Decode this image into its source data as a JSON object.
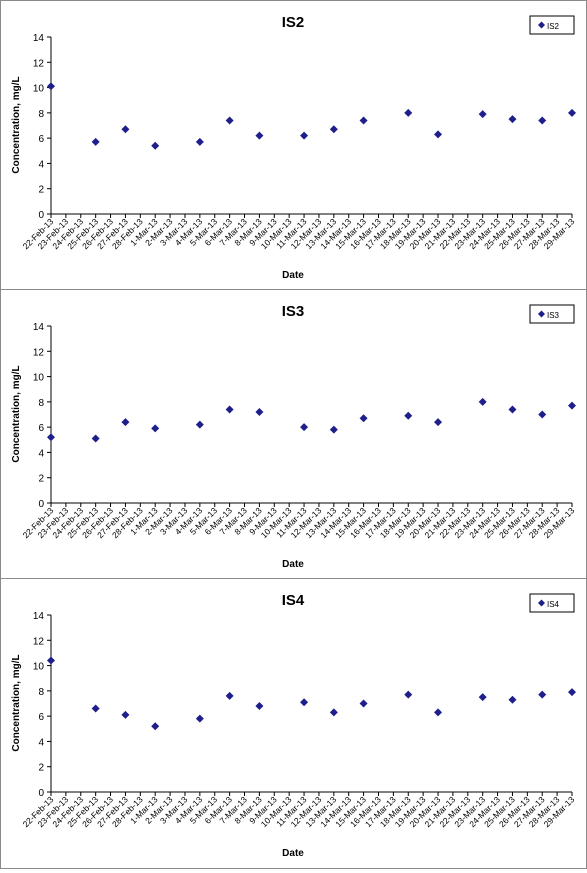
{
  "charts": [
    {
      "title": "IS2",
      "xlabel": "Date",
      "ylabel": "Concentration, mg/L",
      "legend": "IS2",
      "points": [
        {
          "date": "22-Feb-13",
          "value": 10.1
        },
        {
          "date": "25-Feb-13",
          "value": 5.7
        },
        {
          "date": "27-Feb-13",
          "value": 6.7
        },
        {
          "date": "1-Mar-13",
          "value": 5.4
        },
        {
          "date": "4-Mar-13",
          "value": 5.7
        },
        {
          "date": "6-Mar-13",
          "value": 7.4
        },
        {
          "date": "8-Mar-13",
          "value": 6.2
        },
        {
          "date": "11-Mar-13",
          "value": 6.2
        },
        {
          "date": "13-Mar-13",
          "value": 6.7
        },
        {
          "date": "15-Mar-13",
          "value": 7.4
        },
        {
          "date": "18-Mar-13",
          "value": 8.0
        },
        {
          "date": "20-Mar-13",
          "value": 6.3
        },
        {
          "date": "23-Mar-13",
          "value": 7.9
        },
        {
          "date": "25-Mar-13",
          "value": 7.5
        },
        {
          "date": "27-Mar-13",
          "value": 7.4
        },
        {
          "date": "29-Mar-13",
          "value": 8.0
        }
      ]
    },
    {
      "title": "IS3",
      "xlabel": "Date",
      "ylabel": "Concentration, mg/L",
      "legend": "IS3",
      "points": [
        {
          "date": "22-Feb-13",
          "value": 5.2
        },
        {
          "date": "25-Feb-13",
          "value": 5.1
        },
        {
          "date": "27-Feb-13",
          "value": 6.4
        },
        {
          "date": "1-Mar-13",
          "value": 5.9
        },
        {
          "date": "4-Mar-13",
          "value": 6.2
        },
        {
          "date": "6-Mar-13",
          "value": 7.4
        },
        {
          "date": "8-Mar-13",
          "value": 7.2
        },
        {
          "date": "11-Mar-13",
          "value": 6.0
        },
        {
          "date": "13-Mar-13",
          "value": 5.8
        },
        {
          "date": "15-Mar-13",
          "value": 6.7
        },
        {
          "date": "18-Mar-13",
          "value": 6.9
        },
        {
          "date": "20-Mar-13",
          "value": 6.4
        },
        {
          "date": "23-Mar-13",
          "value": 8.0
        },
        {
          "date": "25-Mar-13",
          "value": 7.4
        },
        {
          "date": "27-Mar-13",
          "value": 7.0
        },
        {
          "date": "29-Mar-13",
          "value": 7.7
        }
      ]
    },
    {
      "title": "IS4",
      "xlabel": "Date",
      "ylabel": "Concentration, mg/L",
      "legend": "IS4",
      "points": [
        {
          "date": "22-Feb-13",
          "value": 10.4
        },
        {
          "date": "25-Feb-13",
          "value": 6.6
        },
        {
          "date": "27-Feb-13",
          "value": 6.1
        },
        {
          "date": "1-Mar-13",
          "value": 5.2
        },
        {
          "date": "4-Mar-13",
          "value": 5.8
        },
        {
          "date": "6-Mar-13",
          "value": 7.6
        },
        {
          "date": "8-Mar-13",
          "value": 6.8
        },
        {
          "date": "11-Mar-13",
          "value": 7.1
        },
        {
          "date": "13-Mar-13",
          "value": 6.3
        },
        {
          "date": "15-Mar-13",
          "value": 7.0
        },
        {
          "date": "18-Mar-13",
          "value": 7.7
        },
        {
          "date": "20-Mar-13",
          "value": 6.3
        },
        {
          "date": "23-Mar-13",
          "value": 7.5
        },
        {
          "date": "25-Mar-13",
          "value": 7.3
        },
        {
          "date": "27-Mar-13",
          "value": 7.7
        },
        {
          "date": "29-Mar-13",
          "value": 7.9
        }
      ]
    }
  ],
  "x_tick_labels": [
    "22-Feb-13",
    "23-Feb-13",
    "24-Feb-13",
    "25-Feb-13",
    "26-Feb-13",
    "27-Feb-13",
    "28-Feb-13",
    "1-Mar-13",
    "2-Mar-13",
    "3-Mar-13",
    "4-Mar-13",
    "5-Mar-13",
    "6-Mar-13",
    "7-Mar-13",
    "8-Mar-13",
    "9-Mar-13",
    "10-Mar-13",
    "11-Mar-13",
    "12-Mar-13",
    "13-Mar-13",
    "14-Mar-13",
    "15-Mar-13",
    "16-Mar-13",
    "17-Mar-13",
    "18-Mar-13",
    "19-Mar-13",
    "20-Mar-13",
    "21-Mar-13",
    "22-Mar-13",
    "23-Mar-13",
    "24-Mar-13",
    "25-Mar-13",
    "26-Mar-13",
    "27-Mar-13",
    "28-Mar-13",
    "29-Mar-13"
  ],
  "y_ticks": [
    "0",
    "2",
    "4",
    "6",
    "8",
    "10",
    "12",
    "14"
  ],
  "marker_color": "#1f1f8c",
  "chart_data": [
    {
      "type": "scatter",
      "title": "IS2",
      "xlabel": "Date",
      "ylabel": "Concentration, mg/L",
      "ylim": [
        0,
        14
      ],
      "xlim": [
        "22-Feb-13",
        "29-Mar-13"
      ],
      "legend": "top-right",
      "series": [
        {
          "name": "IS2",
          "x": [
            "22-Feb-13",
            "25-Feb-13",
            "27-Feb-13",
            "1-Mar-13",
            "4-Mar-13",
            "6-Mar-13",
            "8-Mar-13",
            "11-Mar-13",
            "13-Mar-13",
            "15-Mar-13",
            "18-Mar-13",
            "20-Mar-13",
            "23-Mar-13",
            "25-Mar-13",
            "27-Mar-13",
            "29-Mar-13"
          ],
          "y": [
            10.1,
            5.7,
            6.7,
            5.4,
            5.7,
            7.4,
            6.2,
            6.2,
            6.7,
            7.4,
            8.0,
            6.3,
            7.9,
            7.5,
            7.4,
            8.0
          ]
        }
      ]
    },
    {
      "type": "scatter",
      "title": "IS3",
      "xlabel": "Date",
      "ylabel": "Concentration, mg/L",
      "ylim": [
        0,
        14
      ],
      "xlim": [
        "22-Feb-13",
        "29-Mar-13"
      ],
      "legend": "top-right",
      "series": [
        {
          "name": "IS3",
          "x": [
            "22-Feb-13",
            "25-Feb-13",
            "27-Feb-13",
            "1-Mar-13",
            "4-Mar-13",
            "6-Mar-13",
            "8-Mar-13",
            "11-Mar-13",
            "13-Mar-13",
            "15-Mar-13",
            "18-Mar-13",
            "20-Mar-13",
            "23-Mar-13",
            "25-Mar-13",
            "27-Mar-13",
            "29-Mar-13"
          ],
          "y": [
            5.2,
            5.1,
            6.4,
            5.9,
            6.2,
            7.4,
            7.2,
            6.0,
            5.8,
            6.7,
            6.9,
            6.4,
            8.0,
            7.4,
            7.0,
            7.7
          ]
        }
      ]
    },
    {
      "type": "scatter",
      "title": "IS4",
      "xlabel": "Date",
      "ylabel": "Concentration, mg/L",
      "ylim": [
        0,
        14
      ],
      "xlim": [
        "22-Feb-13",
        "29-Mar-13"
      ],
      "legend": "top-right",
      "series": [
        {
          "name": "IS4",
          "x": [
            "22-Feb-13",
            "25-Feb-13",
            "27-Feb-13",
            "1-Mar-13",
            "4-Mar-13",
            "6-Mar-13",
            "8-Mar-13",
            "11-Mar-13",
            "13-Mar-13",
            "15-Mar-13",
            "18-Mar-13",
            "20-Mar-13",
            "23-Mar-13",
            "25-Mar-13",
            "27-Mar-13",
            "29-Mar-13"
          ],
          "y": [
            10.4,
            6.6,
            6.1,
            5.2,
            5.8,
            7.6,
            6.8,
            7.1,
            6.3,
            7.0,
            7.7,
            6.3,
            7.5,
            7.3,
            7.7,
            7.9
          ]
        }
      ]
    }
  ]
}
